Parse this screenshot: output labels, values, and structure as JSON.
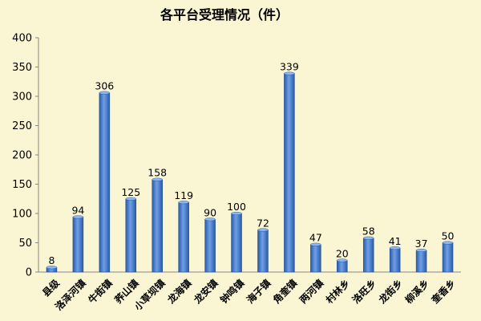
{
  "chart_data": {
    "type": "bar",
    "title": "各平台受理情况（件）",
    "xlabel": "",
    "ylabel": "",
    "ylim": [
      0,
      400
    ],
    "yticks": [
      0,
      50,
      100,
      150,
      200,
      250,
      300,
      350,
      400
    ],
    "grid": false,
    "legend": "none",
    "bar_color": "#3F78C8",
    "background": "#FAF5D2",
    "categories": [
      "县级",
      "洛泽河镇",
      "牛街镇",
      "荞山镇",
      "小草坝镇",
      "龙海镇",
      "龙安镇",
      "钟鸣镇",
      "海子镇",
      "角奎镇",
      "两河镇",
      "村林乡",
      "洛旺乡",
      "龙街乡",
      "柳溪乡",
      "奎香乡"
    ],
    "values": [
      8,
      94,
      306,
      125,
      158,
      119,
      90,
      100,
      72,
      339,
      47,
      20,
      58,
      41,
      37,
      50
    ]
  }
}
